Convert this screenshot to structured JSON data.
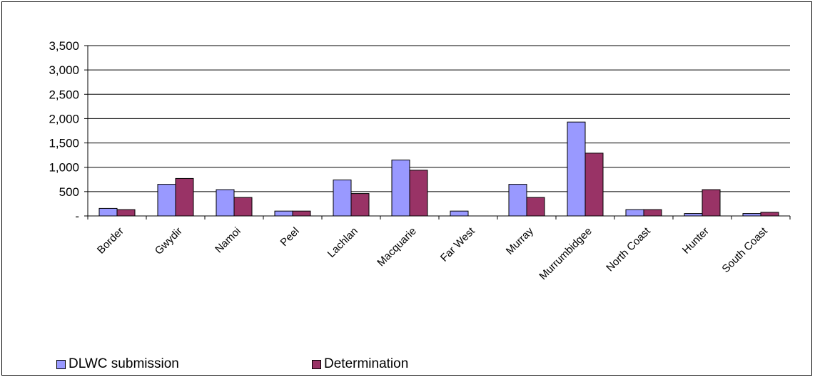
{
  "chart_data": {
    "type": "bar",
    "title": "",
    "xlabel": "",
    "ylabel": "",
    "ylim": [
      0,
      3500
    ],
    "yticks": [
      0,
      500,
      1000,
      1500,
      2000,
      2500,
      3000,
      3500
    ],
    "ytick_labels": [
      "-",
      "500",
      "1,000",
      "1,500",
      "2,000",
      "2,500",
      "3,000",
      "3,500"
    ],
    "grid": "horizontal",
    "legend_position": "bottom-left",
    "categories": [
      "Border",
      "Gwydir",
      "Namoi",
      "Peel",
      "Lachlan",
      "Macquarie",
      "Far West",
      "Murray",
      "Murrumbidgee",
      "North Coast",
      "Hunter",
      "South Coast"
    ],
    "series": [
      {
        "name": "DLWC submission",
        "color": "#9999ff",
        "values": [
          155,
          650,
          540,
          100,
          740,
          1150,
          100,
          650,
          1930,
          130,
          50,
          50
        ]
      },
      {
        "name": "Determination",
        "color": "#993366",
        "values": [
          130,
          770,
          380,
          100,
          460,
          940,
          0,
          380,
          1290,
          130,
          540,
          75
        ]
      }
    ]
  }
}
